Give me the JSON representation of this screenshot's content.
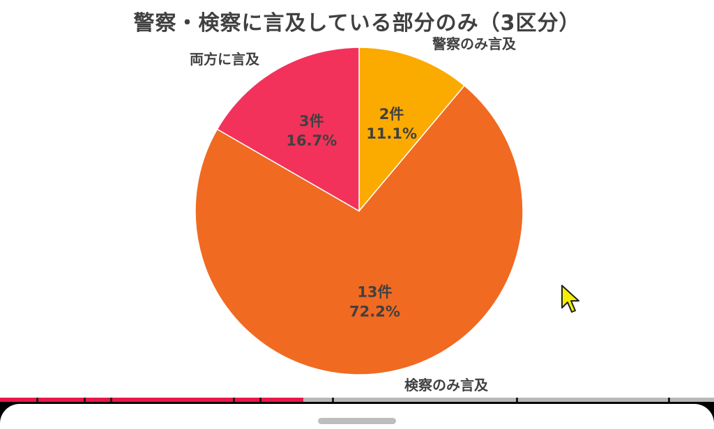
{
  "chart_data": {
    "type": "pie",
    "title": "警察・検察に言及している部分のみ（3区分）",
    "slices": [
      {
        "name": "警察のみ言及",
        "count_label": "2件",
        "percent_label": "11.1%",
        "value": 2,
        "percent": 11.1,
        "color": "#FBAA00"
      },
      {
        "name": "検察のみ言及",
        "count_label": "13件",
        "percent_label": "72.2%",
        "value": 13,
        "percent": 72.2,
        "color": "#F06A22"
      },
      {
        "name": "両方に言及",
        "count_label": "3件",
        "percent_label": "16.7%",
        "value": 3,
        "percent": 16.7,
        "color": "#F2325A"
      }
    ],
    "start": "12 o'clock",
    "direction": "clockwise",
    "legend": "none (labels placed outside slices)"
  },
  "player": {
    "progress_fraction": 0.425,
    "progress_color": "#E8174B"
  },
  "icons": {
    "cursor": "mouse-pointer-icon",
    "handle": "sheet-drag-handle"
  }
}
